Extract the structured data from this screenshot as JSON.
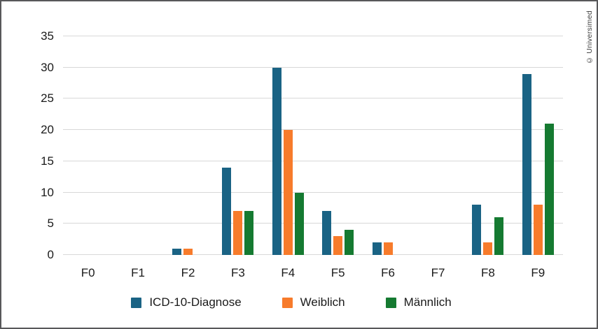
{
  "watermark": "© Universimed",
  "colors": {
    "grid": "#d8d8d8",
    "text": "#1a1a1a",
    "border": "#58585a",
    "background": "#ffffff",
    "series_blue": "#1a6384",
    "series_orange": "#f77b2b",
    "series_green": "#157a31"
  },
  "chart_data": {
    "type": "bar",
    "title": "",
    "xlabel": "",
    "ylabel": "",
    "categories": [
      "F0",
      "F1",
      "F2",
      "F3",
      "F4",
      "F5",
      "F6",
      "F7",
      "F8",
      "F9"
    ],
    "series": [
      {
        "name": "ICD-10-Diagnose",
        "color": "#1a6384",
        "values": [
          0,
          0,
          1,
          14,
          30,
          7,
          2,
          0,
          8,
          29
        ]
      },
      {
        "name": "Weiblich",
        "color": "#f77b2b",
        "values": [
          0,
          0,
          1,
          7,
          20,
          3,
          2,
          0,
          2,
          8
        ]
      },
      {
        "name": "Männlich",
        "color": "#157a31",
        "values": [
          0,
          0,
          0,
          7,
          10,
          4,
          0,
          0,
          6,
          21
        ]
      }
    ],
    "ylim": [
      0,
      35
    ],
    "yticks": [
      0,
      5,
      10,
      15,
      20,
      25,
      30,
      35
    ],
    "grid": true,
    "legend_position": "bottom"
  }
}
